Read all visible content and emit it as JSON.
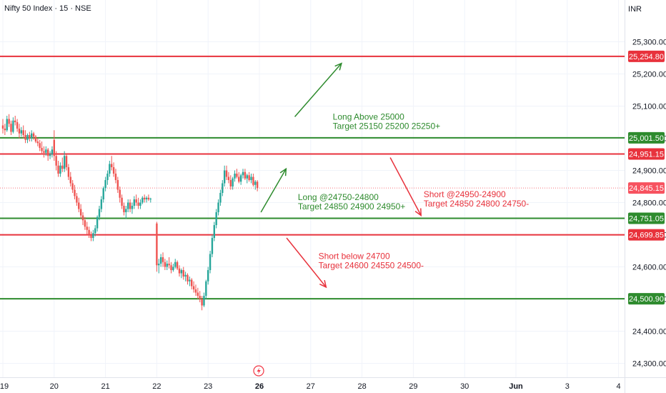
{
  "header": {
    "symbol_title": "Nifty 50 Index · 15 · NSE",
    "currency": "INR"
  },
  "colors": {
    "up": "#26a69a",
    "down": "#ef5350",
    "green_line": "#2e8b2e",
    "red_line": "#e8323c",
    "green_text": "#2e8b2e",
    "red_text": "#e8323c",
    "current_price_bg": "#f7525f",
    "grid": "#f0f3fa",
    "axis_text": "#131722"
  },
  "chart_data": {
    "type": "candlestick",
    "ylim": [
      24250,
      25390
    ],
    "y_ticks": [
      "24,300.00",
      "24,400.00",
      "24,500.00",
      "24,600.00",
      "24,700.00",
      "24,800.00",
      "24,900.00",
      "25,000.00",
      "25,100.00",
      "25,200.00",
      "25,300.00"
    ],
    "y_tick_values": [
      24300,
      24400,
      24500,
      24600,
      24700,
      24800,
      24900,
      25000,
      25100,
      25200,
      25300
    ],
    "x_ticks": [
      "19",
      "20",
      "21",
      "22",
      "23",
      "26",
      "27",
      "28",
      "29",
      "30",
      "Jun",
      "3",
      "4"
    ],
    "x_tick_days": [
      0,
      1,
      2,
      3,
      4,
      5,
      6,
      7,
      8,
      9,
      10,
      11,
      12
    ],
    "x_tick_bold": [
      false,
      false,
      false,
      false,
      false,
      true,
      false,
      false,
      false,
      false,
      true,
      false,
      false
    ],
    "horizontal_levels": [
      {
        "label": "25,254.80",
        "value": 25254.8,
        "color": "red"
      },
      {
        "label": "25,001.50",
        "value": 25001.5,
        "color": "green"
      },
      {
        "label": "24,951.15",
        "value": 24951.15,
        "color": "red"
      },
      {
        "label": "24,751.05",
        "value": 24751.05,
        "color": "green"
      },
      {
        "label": "24,699.85",
        "value": 24699.85,
        "color": "red"
      },
      {
        "label": "24,500.90",
        "value": 24500.9,
        "color": "green"
      }
    ],
    "current_price": {
      "label": "24,845.15",
      "value": 24845.15
    },
    "annotations": [
      {
        "lines": [
          "Long Above 25000",
          "Target 25150 25200 25250+"
        ],
        "color": "green",
        "day": 6.43,
        "value": 25058
      },
      {
        "lines": [
          "Long @24750-24800",
          "Target 24850 24900 24950+"
        ],
        "color": "green",
        "day": 5.75,
        "value": 24808
      },
      {
        "lines": [
          "Short @24950-24900",
          "Target 24850 24800 24750-"
        ],
        "color": "red",
        "day": 8.2,
        "value": 24817
      },
      {
        "lines": [
          "Short below 24700",
          "Target 24600 24550 24500-"
        ],
        "color": "red",
        "day": 6.15,
        "value": 24625
      }
    ],
    "arrows": [
      {
        "color": "green",
        "from": [
          5.69,
          25067
        ],
        "to": [
          6.6,
          25233
        ]
      },
      {
        "color": "green",
        "from": [
          5.03,
          24770
        ],
        "to": [
          5.52,
          24905
        ]
      },
      {
        "color": "red",
        "from": [
          7.55,
          24940
        ],
        "to": [
          8.15,
          24760
        ]
      },
      {
        "color": "red",
        "from": [
          5.53,
          24690
        ],
        "to": [
          6.3,
          24537
        ]
      }
    ],
    "candles": [
      [
        0.0,
        25040,
        25060,
        25015,
        25030
      ],
      [
        0.04,
        25030,
        25045,
        25010,
        25025
      ],
      [
        0.08,
        25025,
        25070,
        25020,
        25060
      ],
      [
        0.12,
        25060,
        25075,
        25035,
        25045
      ],
      [
        0.16,
        25045,
        25055,
        25010,
        25020
      ],
      [
        0.2,
        25020,
        25065,
        25015,
        25055
      ],
      [
        0.24,
        25055,
        25070,
        25040,
        25050
      ],
      [
        0.28,
        25050,
        25060,
        25020,
        25030
      ],
      [
        0.32,
        25030,
        25045,
        25000,
        25015
      ],
      [
        0.36,
        25015,
        25035,
        25005,
        25025
      ],
      [
        0.4,
        25025,
        25040,
        25000,
        25010
      ],
      [
        0.44,
        25010,
        25025,
        24985,
        24995
      ],
      [
        0.48,
        24995,
        25015,
        24985,
        25010
      ],
      [
        0.52,
        25010,
        25020,
        24990,
        25000
      ],
      [
        0.56,
        25000,
        25025,
        24990,
        25015
      ],
      [
        0.6,
        25015,
        25020,
        24995,
        25005
      ],
      [
        0.64,
        25005,
        25010,
        24985,
        24990
      ],
      [
        0.68,
        24990,
        25000,
        24975,
        24985
      ],
      [
        0.72,
        24985,
        24995,
        24960,
        24970
      ],
      [
        0.76,
        24970,
        24990,
        24950,
        24960
      ],
      [
        0.8,
        24960,
        24975,
        24940,
        24955
      ],
      [
        0.84,
        24955,
        24975,
        24945,
        24965
      ],
      [
        0.88,
        24965,
        24970,
        24930,
        24945
      ],
      [
        0.92,
        24945,
        24960,
        24935,
        24950
      ],
      [
        0.96,
        24950,
        24975,
        24940,
        24965
      ],
      [
        1.0,
        24995,
        25025,
        24930,
        24945
      ],
      [
        1.04,
        24945,
        24960,
        24900,
        24915
      ],
      [
        1.08,
        24915,
        24930,
        24880,
        24890
      ],
      [
        1.12,
        24890,
        24925,
        24880,
        24915
      ],
      [
        1.16,
        24915,
        24940,
        24895,
        24905
      ],
      [
        1.2,
        24905,
        24960,
        24895,
        24945
      ],
      [
        1.24,
        24945,
        24950,
        24900,
        24910
      ],
      [
        1.28,
        24910,
        24920,
        24870,
        24880
      ],
      [
        1.32,
        24880,
        24895,
        24850,
        24860
      ],
      [
        1.36,
        24860,
        24870,
        24830,
        24840
      ],
      [
        1.4,
        24840,
        24855,
        24810,
        24820
      ],
      [
        1.44,
        24820,
        24830,
        24790,
        24800
      ],
      [
        1.48,
        24800,
        24815,
        24770,
        24780
      ],
      [
        1.52,
        24780,
        24795,
        24750,
        24760
      ],
      [
        1.56,
        24760,
        24770,
        24730,
        24745
      ],
      [
        1.6,
        24745,
        24755,
        24715,
        24725
      ],
      [
        1.64,
        24725,
        24740,
        24700,
        24715
      ],
      [
        1.68,
        24715,
        24725,
        24690,
        24700
      ],
      [
        1.72,
        24700,
        24710,
        24680,
        24690
      ],
      [
        1.76,
        24690,
        24715,
        24680,
        24705
      ],
      [
        1.8,
        24705,
        24730,
        24695,
        24720
      ],
      [
        1.84,
        24720,
        24760,
        24710,
        24755
      ],
      [
        1.88,
        24755,
        24790,
        24745,
        24780
      ],
      [
        1.92,
        24780,
        24820,
        24770,
        24810
      ],
      [
        1.96,
        24810,
        24850,
        24800,
        24845
      ],
      [
        2.0,
        24845,
        24880,
        24835,
        24870
      ],
      [
        2.04,
        24870,
        24900,
        24855,
        24890
      ],
      [
        2.08,
        24890,
        24930,
        24880,
        24920
      ],
      [
        2.12,
        24920,
        24945,
        24900,
        24910
      ],
      [
        2.16,
        24910,
        24925,
        24880,
        24890
      ],
      [
        2.2,
        24890,
        24905,
        24860,
        24870
      ],
      [
        2.24,
        24870,
        24880,
        24830,
        24840
      ],
      [
        2.28,
        24840,
        24850,
        24800,
        24815
      ],
      [
        2.32,
        24815,
        24825,
        24780,
        24790
      ],
      [
        2.36,
        24790,
        24800,
        24760,
        24770
      ],
      [
        2.4,
        24770,
        24790,
        24750,
        24780
      ],
      [
        2.44,
        24780,
        24810,
        24770,
        24800
      ],
      [
        2.48,
        24800,
        24810,
        24770,
        24780
      ],
      [
        2.52,
        24780,
        24800,
        24765,
        24790
      ],
      [
        2.56,
        24790,
        24820,
        24780,
        24810
      ],
      [
        2.6,
        24810,
        24825,
        24790,
        24800
      ],
      [
        2.64,
        24800,
        24815,
        24780,
        24790
      ],
      [
        2.68,
        24790,
        24810,
        24780,
        24800
      ],
      [
        2.72,
        24800,
        24820,
        24795,
        24815
      ],
      [
        2.76,
        24815,
        24825,
        24800,
        24810
      ],
      [
        2.8,
        24810,
        24820,
        24800,
        24815
      ],
      [
        2.84,
        24815,
        24825,
        24805,
        24810
      ],
      [
        2.88,
        24810,
        24815,
        24800,
        24812
      ],
      [
        3.0,
        24735,
        24740,
        24585,
        24605
      ],
      [
        3.04,
        24605,
        24625,
        24580,
        24610
      ],
      [
        3.08,
        24610,
        24640,
        24600,
        24630
      ],
      [
        3.12,
        24630,
        24645,
        24600,
        24615
      ],
      [
        3.16,
        24615,
        24625,
        24590,
        24600
      ],
      [
        3.2,
        24600,
        24620,
        24590,
        24610
      ],
      [
        3.24,
        24610,
        24630,
        24595,
        24605
      ],
      [
        3.28,
        24605,
        24615,
        24580,
        24590
      ],
      [
        3.32,
        24590,
        24610,
        24585,
        24600
      ],
      [
        3.36,
        24600,
        24625,
        24595,
        24615
      ],
      [
        3.4,
        24615,
        24620,
        24590,
        24595
      ],
      [
        3.44,
        24595,
        24605,
        24570,
        24580
      ],
      [
        3.48,
        24580,
        24595,
        24565,
        24590
      ],
      [
        3.52,
        24590,
        24600,
        24560,
        24570
      ],
      [
        3.56,
        24570,
        24585,
        24555,
        24575
      ],
      [
        3.6,
        24575,
        24580,
        24545,
        24555
      ],
      [
        3.64,
        24555,
        24570,
        24540,
        24560
      ],
      [
        3.68,
        24560,
        24565,
        24530,
        24540
      ],
      [
        3.72,
        24540,
        24555,
        24520,
        24530
      ],
      [
        3.76,
        24530,
        24545,
        24510,
        24520
      ],
      [
        3.8,
        24520,
        24535,
        24500,
        24510
      ],
      [
        3.84,
        24510,
        24525,
        24490,
        24500
      ],
      [
        3.88,
        24500,
        24510,
        24465,
        24480
      ],
      [
        3.92,
        24480,
        24520,
        24475,
        24510
      ],
      [
        3.96,
        24510,
        24560,
        24500,
        24555
      ],
      [
        4.0,
        24555,
        24600,
        24545,
        24590
      ],
      [
        4.04,
        24590,
        24650,
        24580,
        24640
      ],
      [
        4.08,
        24640,
        24700,
        24630,
        24690
      ],
      [
        4.12,
        24690,
        24740,
        24680,
        24730
      ],
      [
        4.16,
        24730,
        24780,
        24720,
        24770
      ],
      [
        4.2,
        24770,
        24810,
        24760,
        24800
      ],
      [
        4.24,
        24800,
        24840,
        24790,
        24830
      ],
      [
        4.28,
        24830,
        24870,
        24820,
        24860
      ],
      [
        4.32,
        24860,
        24915,
        24850,
        24900
      ],
      [
        4.36,
        24900,
        24915,
        24870,
        24880
      ],
      [
        4.4,
        24880,
        24895,
        24860,
        24870
      ],
      [
        4.44,
        24870,
        24885,
        24840,
        24850
      ],
      [
        4.48,
        24850,
        24880,
        24840,
        24875
      ],
      [
        4.52,
        24875,
        24900,
        24865,
        24890
      ],
      [
        4.56,
        24890,
        24905,
        24875,
        24880
      ],
      [
        4.6,
        24880,
        24895,
        24860,
        24865
      ],
      [
        4.64,
        24865,
        24890,
        24855,
        24885
      ],
      [
        4.68,
        24885,
        24905,
        24875,
        24895
      ],
      [
        4.72,
        24895,
        24905,
        24870,
        24875
      ],
      [
        4.76,
        24875,
        24890,
        24860,
        24885
      ],
      [
        4.8,
        24885,
        24895,
        24865,
        24870
      ],
      [
        4.84,
        24870,
        24890,
        24860,
        24880
      ],
      [
        4.88,
        24880,
        24890,
        24850,
        24855
      ],
      [
        4.92,
        24855,
        24870,
        24840,
        24865
      ],
      [
        4.96,
        24865,
        24870,
        24835,
        24845
      ]
    ]
  }
}
